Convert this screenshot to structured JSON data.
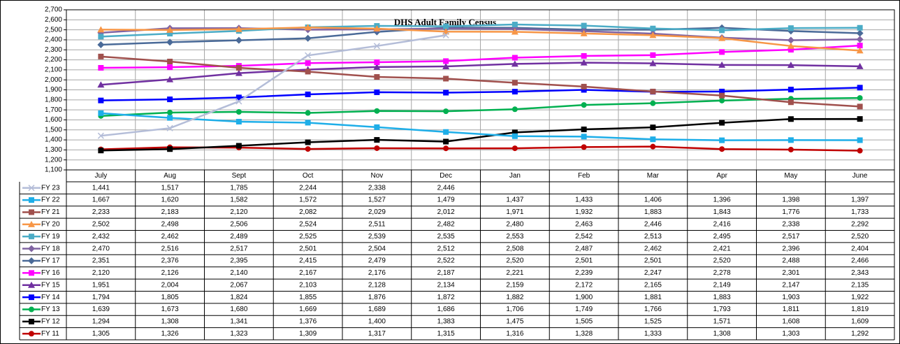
{
  "chart_data": {
    "type": "line",
    "title": "DHS Adult Family Census",
    "categories": [
      "July",
      "Aug",
      "Sept",
      "Oct",
      "Nov",
      "Dec",
      "Jan",
      "Feb",
      "Mar",
      "Apr",
      "May",
      "June"
    ],
    "ylim": [
      1100,
      2700
    ],
    "yticks": [
      {
        "value": 1100,
        "label": "1,100"
      },
      {
        "value": 1200,
        "label": "1,200"
      },
      {
        "value": 1300,
        "label": "1,300"
      },
      {
        "value": 1400,
        "label": "1,400"
      },
      {
        "value": 1500,
        "label": "1,500"
      },
      {
        "value": 1600,
        "label": "1,600"
      },
      {
        "value": 1700,
        "label": "1,700"
      },
      {
        "value": 1800,
        "label": "1,800"
      },
      {
        "value": 1900,
        "label": "1,900"
      },
      {
        "value": 2000,
        "label": "2,000"
      },
      {
        "value": 2100,
        "label": "2,100"
      },
      {
        "value": 2200,
        "label": "2,200"
      },
      {
        "value": 2300,
        "label": "2,300"
      },
      {
        "value": 2400,
        "label": "2,400"
      },
      {
        "value": 2500,
        "label": "2,500"
      },
      {
        "value": 2600,
        "label": "2,600"
      },
      {
        "value": 2700,
        "label": "2,700"
      }
    ],
    "grid": true,
    "series": [
      {
        "name": "FY 23",
        "color": "#b4bdd8",
        "marker": "x",
        "values": [
          1441,
          1517,
          1785,
          2244,
          2338,
          2446,
          null,
          null,
          null,
          null,
          null,
          null
        ],
        "value_labels": [
          "1,441",
          "1,517",
          "1,785",
          "2,244",
          "2,338",
          "2,446",
          null,
          null,
          null,
          null,
          null,
          null
        ]
      },
      {
        "name": "FY 22",
        "color": "#1eaee8",
        "marker": "square",
        "values": [
          1667,
          1620,
          1582,
          1572,
          1527,
          1479,
          1437,
          1433,
          1406,
          1396,
          1398,
          1397
        ],
        "value_labels": [
          "1,667",
          "1,620",
          "1,582",
          "1,572",
          "1,527",
          "1,479",
          "1,437",
          "1,433",
          "1,406",
          "1,396",
          "1,398",
          "1,397"
        ]
      },
      {
        "name": "FY 21",
        "color": "#a0504d",
        "marker": "square",
        "values": [
          2233,
          2183,
          2120,
          2082,
          2029,
          2012,
          1971,
          1932,
          1883,
          1843,
          1776,
          1733
        ],
        "value_labels": [
          "2,233",
          "2,183",
          "2,120",
          "2,082",
          "2,029",
          "2,012",
          "1,971",
          "1,932",
          "1,883",
          "1,843",
          "1,776",
          "1,733"
        ]
      },
      {
        "name": "FY 20",
        "color": "#f79646",
        "marker": "triangle",
        "values": [
          2502,
          2498,
          2506,
          2524,
          2511,
          2482,
          2480,
          2463,
          2446,
          2416,
          2338,
          2292
        ],
        "value_labels": [
          "2,502",
          "2,498",
          "2,506",
          "2,524",
          "2,511",
          "2,482",
          "2,480",
          "2,463",
          "2,446",
          "2,416",
          "2,338",
          "2,292"
        ]
      },
      {
        "name": "FY 19",
        "color": "#4bacc6",
        "marker": "square",
        "values": [
          2432,
          2462,
          2489,
          2525,
          2539,
          2535,
          2553,
          2542,
          2513,
          2495,
          2517,
          2520
        ],
        "value_labels": [
          "2,432",
          "2,462",
          "2,489",
          "2,525",
          "2,539",
          "2,535",
          "2,553",
          "2,542",
          "2,513",
          "2,495",
          "2,517",
          "2,520"
        ]
      },
      {
        "name": "FY 18",
        "color": "#8064a2",
        "marker": "diamond",
        "values": [
          2470,
          2516,
          2517,
          2501,
          2504,
          2512,
          2508,
          2487,
          2462,
          2421,
          2396,
          2404
        ],
        "value_labels": [
          "2,470",
          "2,516",
          "2,517",
          "2,501",
          "2,504",
          "2,512",
          "2,508",
          "2,487",
          "2,462",
          "2,421",
          "2,396",
          "2,404"
        ]
      },
      {
        "name": "FY 17",
        "color": "#4a6a98",
        "marker": "diamond",
        "values": [
          2351,
          2376,
          2395,
          2415,
          2479,
          2522,
          2520,
          2501,
          2501,
          2520,
          2488,
          2466
        ],
        "value_labels": [
          "2,351",
          "2,376",
          "2,395",
          "2,415",
          "2,479",
          "2,522",
          "2,520",
          "2,501",
          "2,501",
          "2,520",
          "2,488",
          "2,466"
        ]
      },
      {
        "name": "FY 16",
        "color": "#ff00ff",
        "marker": "square",
        "values": [
          2120,
          2126,
          2140,
          2167,
          2176,
          2187,
          2221,
          2239,
          2247,
          2278,
          2301,
          2343
        ],
        "value_labels": [
          "2,120",
          "2,126",
          "2,140",
          "2,167",
          "2,176",
          "2,187",
          "2,221",
          "2,239",
          "2,247",
          "2,278",
          "2,301",
          "2,343"
        ]
      },
      {
        "name": "FY 15",
        "color": "#7030a0",
        "marker": "triangle",
        "values": [
          1951,
          2004,
          2067,
          2103,
          2128,
          2134,
          2159,
          2172,
          2165,
          2149,
          2147,
          2135
        ],
        "value_labels": [
          "1,951",
          "2,004",
          "2,067",
          "2,103",
          "2,128",
          "2,134",
          "2,159",
          "2,172",
          "2,165",
          "2,149",
          "2,147",
          "2,135"
        ]
      },
      {
        "name": "FY 14",
        "color": "#0000ff",
        "marker": "square",
        "values": [
          1794,
          1805,
          1824,
          1855,
          1876,
          1872,
          1882,
          1900,
          1881,
          1883,
          1903,
          1922
        ],
        "value_labels": [
          "1,794",
          "1,805",
          "1,824",
          "1,855",
          "1,876",
          "1,872",
          "1,882",
          "1,900",
          "1,881",
          "1,883",
          "1,903",
          "1,922"
        ]
      },
      {
        "name": "FY 13",
        "color": "#00b050",
        "marker": "circle",
        "values": [
          1639,
          1673,
          1680,
          1669,
          1689,
          1686,
          1706,
          1749,
          1766,
          1793,
          1811,
          1819
        ],
        "value_labels": [
          "1,639",
          "1,673",
          "1,680",
          "1,669",
          "1,689",
          "1,686",
          "1,706",
          "1,749",
          "1,766",
          "1,793",
          "1,811",
          "1,819"
        ]
      },
      {
        "name": "FY 12",
        "color": "#000000",
        "marker": "square",
        "values": [
          1294,
          1308,
          1341,
          1376,
          1400,
          1383,
          1475,
          1505,
          1525,
          1571,
          1608,
          1609
        ],
        "value_labels": [
          "1,294",
          "1,308",
          "1,341",
          "1,376",
          "1,400",
          "1,383",
          "1,475",
          "1,505",
          "1,525",
          "1,571",
          "1,608",
          "1,609"
        ]
      },
      {
        "name": "FY 11",
        "color": "#c00000",
        "marker": "circle",
        "values": [
          1305,
          1326,
          1323,
          1309,
          1317,
          1315,
          1316,
          1328,
          1333,
          1308,
          1303,
          1292
        ],
        "value_labels": [
          "1,305",
          "1,326",
          "1,323",
          "1,309",
          "1,317",
          "1,315",
          "1,316",
          "1,328",
          "1,333",
          "1,308",
          "1,303",
          "1,292"
        ]
      }
    ]
  }
}
